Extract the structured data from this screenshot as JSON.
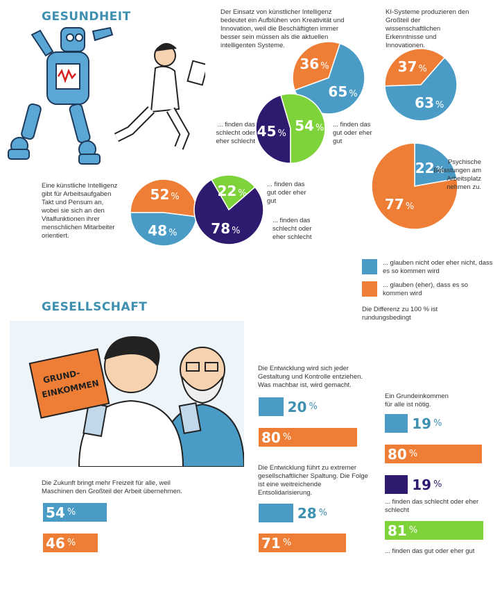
{
  "sections": {
    "health_title": "GESUNDHEIT",
    "society_title": "GESELLSCHAFT"
  },
  "colors": {
    "blue": "#4a9cc7",
    "orange": "#ee7d35",
    "purple": "#2e1a6e",
    "green": "#7ed23a",
    "title": "#3e8fb0"
  },
  "notes": {
    "n1": "Der Einsatz von künstlicher Intelligenz bedeutet ein Aufblühen von Kreativität und Innovation, weil die Beschäftigten immer besser sein müssen als die aktuellen intelligenten Systeme.",
    "n2": "KI-Systeme produzieren den Großteil der wissenschaftlichen Erkenntnisse und Innovationen.",
    "n3": "Eine künstliche Intelligenz gibt für Arbeitsaufgaben Takt und Pensum an, wobei sie sich an den Vitalfunktionen ihrer menschlichen Mitarbeiter orientiert.",
    "n4": "Psychische Belastungen am Arbeitsplatz nehmen zu.",
    "bad1": "... finden das schlecht oder eher schlecht",
    "good1": "... finden das gut oder eher gut",
    "good2": "... finden das gut oder eher gut",
    "bad2": "... finden das schlecht oder eher schlecht",
    "n5": "Die Entwicklung wird sich jeder Gestaltung und Kontrolle entziehen. Was machbar ist, wird gemacht.",
    "n6": "Ein Grundeinkommen für alle ist nötig.",
    "n7": "Die Entwicklung führt zu extremer gesellschaftlicher Spaltung. Die Folge ist eine weitreichende Entsolidarisierung.",
    "n8": "Die Zukunft bringt mehr Freizeit für alle, weil Maschinen den Großteil der Arbeit übernehmen.",
    "bad3": "... finden das schlecht oder eher schlecht",
    "good3": "... finden das gut oder eher gut"
  },
  "legend": {
    "blue_label": "... glauben nicht oder eher nicht, dass es so kommen wird",
    "orange_label": "... glauben (eher), dass es so kommen wird",
    "footnote": "Die Differenz zu 100 % ist rundungsbedingt"
  },
  "illustration": {
    "sign_text": "GRUND-EINKOMMEN"
  },
  "chart_data": [
    {
      "type": "pie",
      "id": "kreativitaet",
      "slices": [
        {
          "label": "glauben (eher)",
          "value": 36,
          "color": "orange"
        },
        {
          "label": "glauben nicht",
          "value": 65,
          "color": "blue"
        }
      ]
    },
    {
      "type": "pie",
      "id": "kreativitaet_bewertung",
      "slices": [
        {
          "label": "finden das schlecht oder eher schlecht",
          "value": 45,
          "color": "purple"
        },
        {
          "label": "finden das gut oder eher gut",
          "value": 54,
          "color": "green"
        }
      ]
    },
    {
      "type": "pie",
      "id": "ki_erkenntnisse",
      "slices": [
        {
          "label": "glauben (eher)",
          "value": 37,
          "color": "orange"
        },
        {
          "label": "glauben nicht",
          "value": 63,
          "color": "blue"
        }
      ]
    },
    {
      "type": "pie",
      "id": "belastungen",
      "slices": [
        {
          "label": "glauben nicht",
          "value": 22,
          "color": "blue"
        },
        {
          "label": "glauben (eher)",
          "value": 77,
          "color": "orange"
        }
      ]
    },
    {
      "type": "pie",
      "id": "takt_pensum",
      "slices": [
        {
          "label": "glauben (eher)",
          "value": 52,
          "color": "orange"
        },
        {
          "label": "glauben nicht",
          "value": 48,
          "color": "blue"
        }
      ]
    },
    {
      "type": "pie",
      "id": "takt_bewertung",
      "slices": [
        {
          "label": "finden das gut oder eher gut",
          "value": 22,
          "color": "green"
        },
        {
          "label": "finden das schlecht oder eher schlecht",
          "value": 78,
          "color": "purple"
        }
      ]
    },
    {
      "type": "bar",
      "id": "kontrolle",
      "bars": [
        {
          "value": 20,
          "color": "blue"
        },
        {
          "value": 80,
          "color": "orange"
        }
      ]
    },
    {
      "type": "bar",
      "id": "grundeinkommen",
      "bars": [
        {
          "value": 19,
          "color": "blue"
        },
        {
          "value": 80,
          "color": "orange"
        },
        {
          "value": 19,
          "color": "purple"
        },
        {
          "value": 81,
          "color": "green"
        }
      ]
    },
    {
      "type": "bar",
      "id": "spaltung",
      "bars": [
        {
          "value": 28,
          "color": "blue"
        },
        {
          "value": 71,
          "color": "orange"
        }
      ]
    },
    {
      "type": "bar",
      "id": "freizeit",
      "bars": [
        {
          "value": 54,
          "color": "blue"
        },
        {
          "value": 46,
          "color": "orange"
        }
      ]
    }
  ],
  "pct_symbol": "%"
}
